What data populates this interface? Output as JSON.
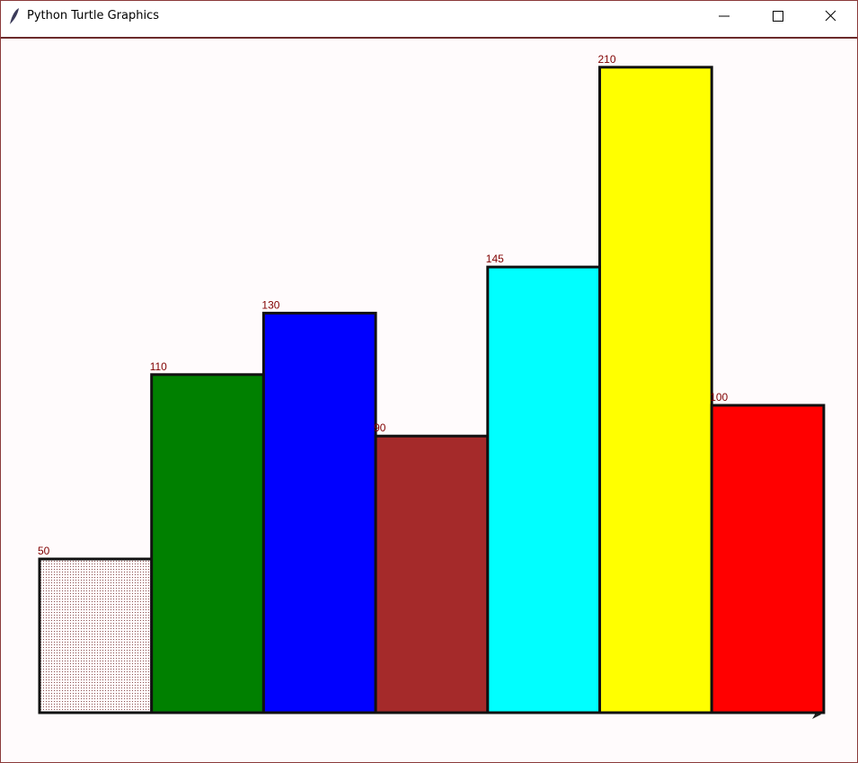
{
  "window": {
    "title": "Python Turtle Graphics"
  },
  "chart_data": {
    "type": "bar",
    "values": [
      50,
      110,
      130,
      90,
      145,
      210,
      100
    ],
    "colors": [
      "#f3ecec",
      "#008000",
      "#0000ff",
      "#a52a2a",
      "#00ffff",
      "#ffff00",
      "#ff0000"
    ],
    "label_color": "#800000"
  }
}
